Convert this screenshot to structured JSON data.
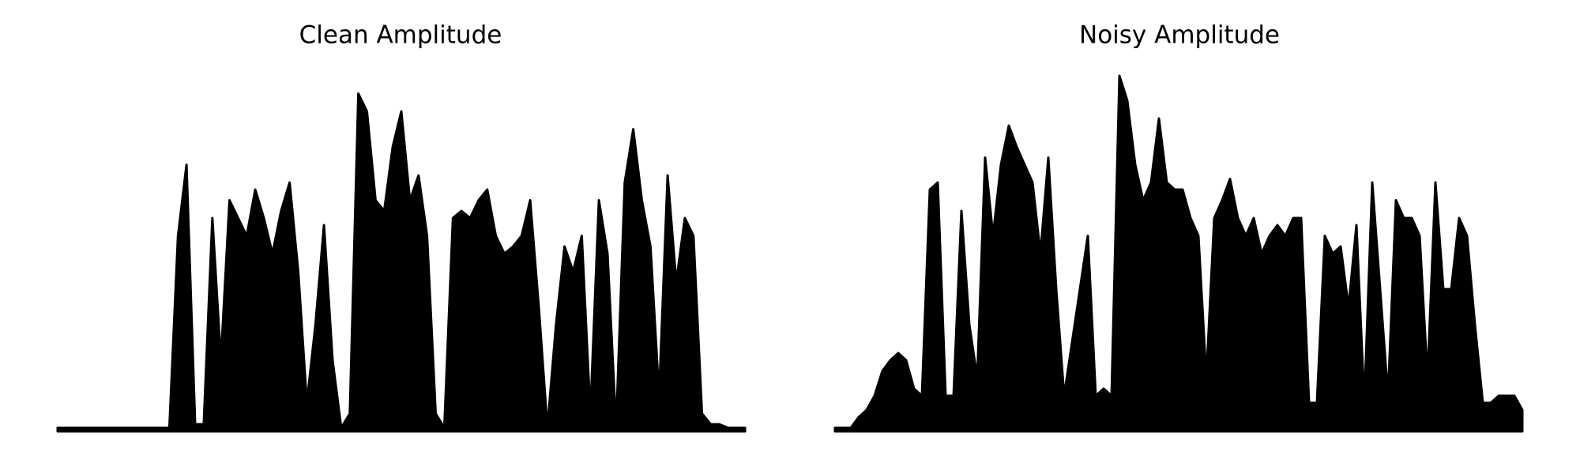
{
  "chart_data": [
    {
      "type": "area",
      "title": "Clean Amplitude",
      "color": "#000000",
      "ylim": [
        0,
        1
      ],
      "values": [
        0.01,
        0.01,
        0.01,
        0.01,
        0.01,
        0.01,
        0.01,
        0.01,
        0.01,
        0.01,
        0.01,
        0.01,
        0.01,
        0.01,
        0.55,
        0.75,
        0.02,
        0.02,
        0.6,
        0.2,
        0.65,
        0.6,
        0.55,
        0.68,
        0.6,
        0.5,
        0.62,
        0.7,
        0.45,
        0.08,
        0.3,
        0.58,
        0.2,
        0.01,
        0.05,
        0.95,
        0.9,
        0.65,
        0.62,
        0.8,
        0.9,
        0.65,
        0.72,
        0.55,
        0.05,
        0.01,
        0.6,
        0.62,
        0.6,
        0.65,
        0.68,
        0.55,
        0.5,
        0.52,
        0.55,
        0.65,
        0.35,
        0.01,
        0.3,
        0.52,
        0.45,
        0.55,
        0.05,
        0.65,
        0.5,
        0.01,
        0.7,
        0.85,
        0.65,
        0.52,
        0.1,
        0.72,
        0.42,
        0.6,
        0.55,
        0.05,
        0.02,
        0.02,
        0.01,
        0.01,
        0.01
      ]
    },
    {
      "type": "area",
      "title": "Noisy Amplitude",
      "color": "#000000",
      "ylim": [
        0,
        1
      ],
      "values": [
        0.01,
        0.01,
        0.01,
        0.04,
        0.06,
        0.1,
        0.17,
        0.2,
        0.22,
        0.2,
        0.12,
        0.1,
        0.68,
        0.7,
        0.1,
        0.1,
        0.62,
        0.3,
        0.15,
        0.77,
        0.55,
        0.75,
        0.86,
        0.8,
        0.75,
        0.7,
        0.5,
        0.77,
        0.4,
        0.1,
        0.25,
        0.4,
        0.55,
        0.1,
        0.12,
        0.1,
        1.0,
        0.93,
        0.75,
        0.65,
        0.7,
        0.88,
        0.7,
        0.68,
        0.68,
        0.6,
        0.55,
        0.15,
        0.6,
        0.65,
        0.71,
        0.6,
        0.55,
        0.6,
        0.5,
        0.55,
        0.58,
        0.55,
        0.6,
        0.6,
        0.08,
        0.08,
        0.55,
        0.5,
        0.52,
        0.35,
        0.58,
        0.08,
        0.7,
        0.4,
        0.1,
        0.65,
        0.6,
        0.6,
        0.55,
        0.15,
        0.7,
        0.4,
        0.4,
        0.6,
        0.55,
        0.3,
        0.08,
        0.08,
        0.1,
        0.1,
        0.1,
        0.06
      ]
    }
  ]
}
